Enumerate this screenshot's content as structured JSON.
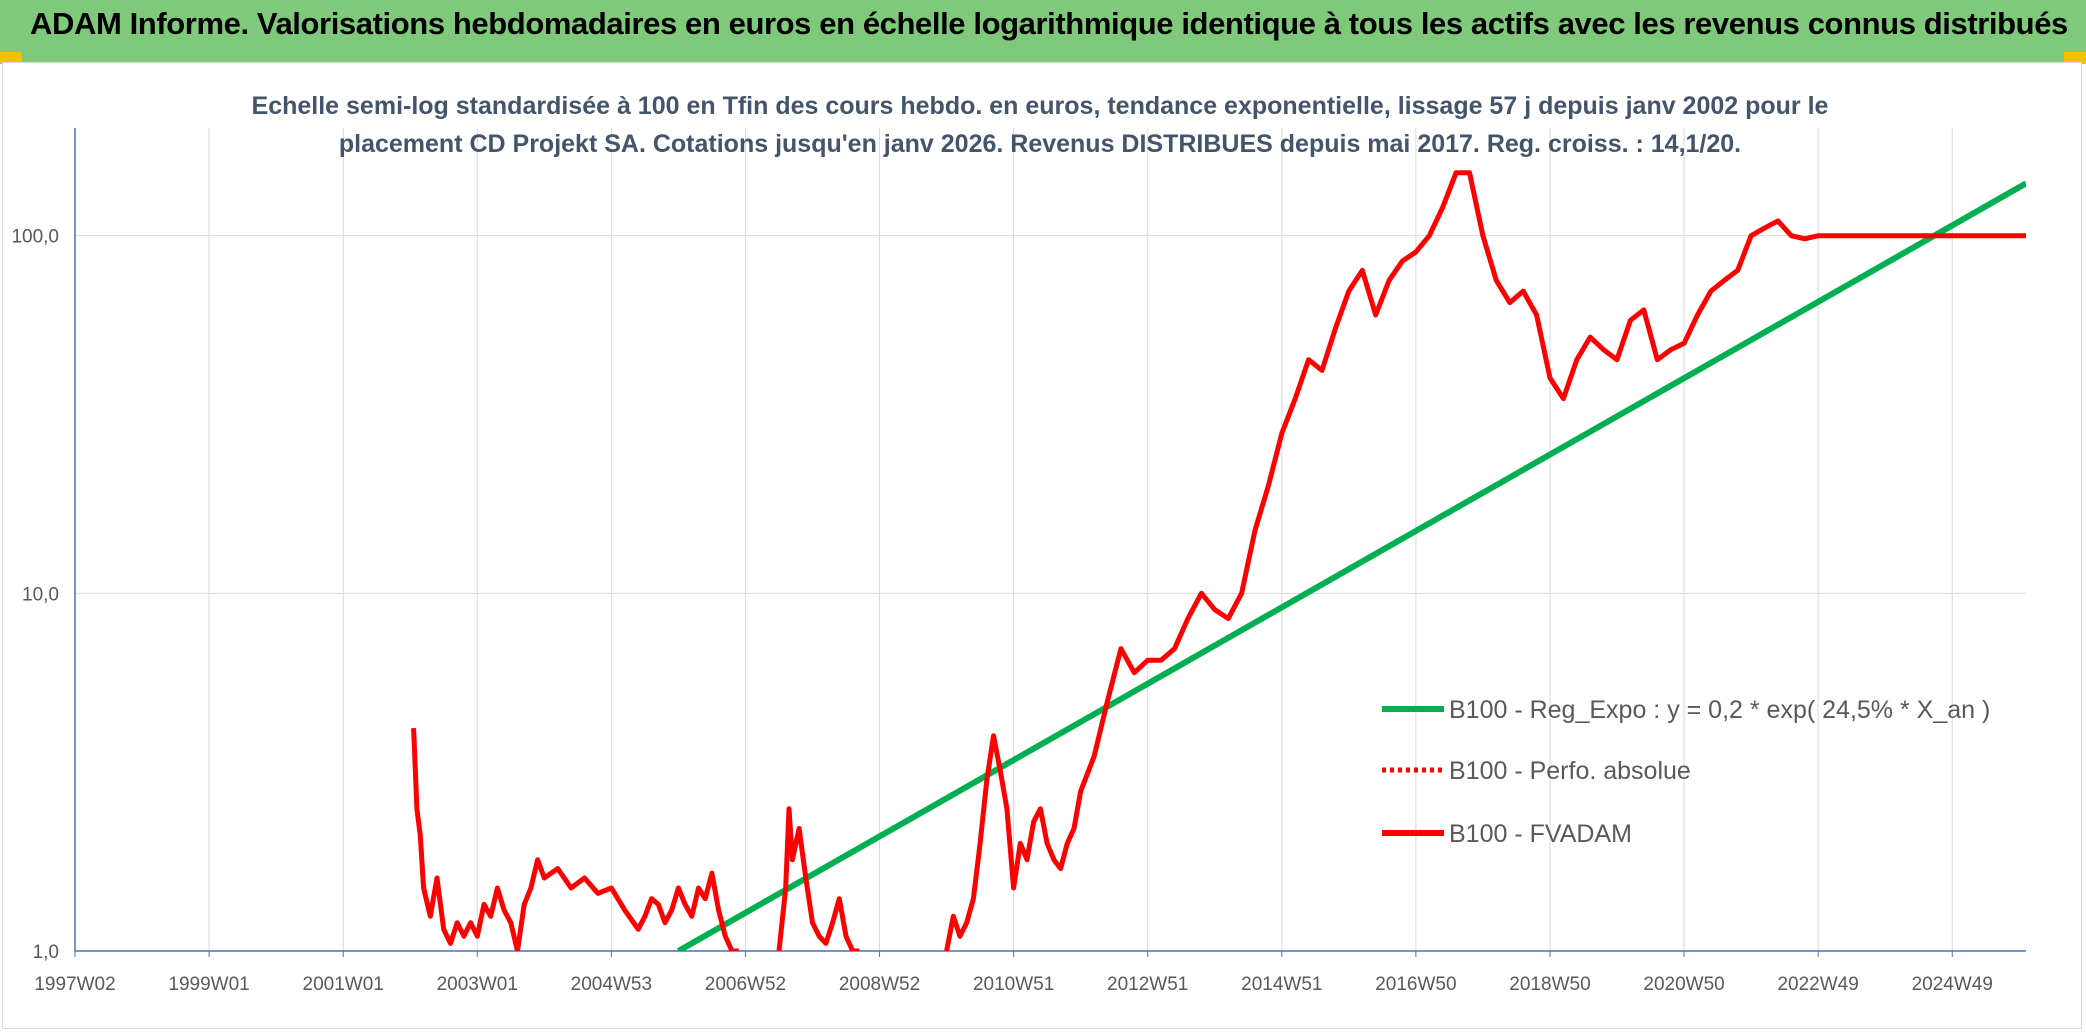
{
  "header": {
    "title": "ADAM Informe. Valorisations hebdomadaires en euros en échelle logarithmique identique à tous les actifs avec les revenus connus distribués"
  },
  "colors": {
    "banner": "#7fc97a",
    "regression": "#00b050",
    "fvadam": "#ff0000",
    "grid": "#d9d9d9",
    "axis": "#4472c4"
  },
  "chart_data": {
    "type": "line",
    "title_lines": [
      "Echelle semi-log standardisée à 100 en Tfin des cours hebdo. en euros, tendance exponentielle, lissage 57 j depuis janv 2002 pour le",
      "placement CD Projekt SA. Cotations jusqu'en janv 2026. Revenus DISTRIBUES depuis mai 2017. Reg. croiss. : 14,1/20."
    ],
    "y_scale": "log",
    "ylim": [
      1,
      200
    ],
    "xlim": [
      1997.0,
      2026.1
    ],
    "y_ticks": [
      {
        "value": 1,
        "label": "1,0"
      },
      {
        "value": 10,
        "label": "10,0"
      },
      {
        "value": 100,
        "label": "100,0"
      }
    ],
    "x_ticks": [
      {
        "value": 1997.0,
        "label": "1997W02"
      },
      {
        "value": 1999.0,
        "label": "1999W01"
      },
      {
        "value": 2001.0,
        "label": "2001W01"
      },
      {
        "value": 2003.0,
        "label": "2003W01"
      },
      {
        "value": 2005.0,
        "label": "2004W53"
      },
      {
        "value": 2007.0,
        "label": "2006W52"
      },
      {
        "value": 2009.0,
        "label": "2008W52"
      },
      {
        "value": 2011.0,
        "label": "2010W51"
      },
      {
        "value": 2013.0,
        "label": "2012W51"
      },
      {
        "value": 2015.0,
        "label": "2014W51"
      },
      {
        "value": 2017.0,
        "label": "2016W50"
      },
      {
        "value": 2019.0,
        "label": "2018W50"
      },
      {
        "value": 2021.0,
        "label": "2020W50"
      },
      {
        "value": 2023.0,
        "label": "2022W49"
      },
      {
        "value": 2025.0,
        "label": "2024W49"
      }
    ],
    "grid": true,
    "legend_position": "right",
    "series": [
      {
        "name": "B100 - Reg_Expo : y = 0,2 * exp( 24,5% *  X_an )",
        "style": "solid",
        "color": "#00b050",
        "x": [
          2006.0,
          2026.1
        ],
        "y": [
          1.0,
          140
        ]
      },
      {
        "name": "B100 - Perfo. absolue",
        "style": "dotted",
        "color": "#ff0000",
        "x": [],
        "y": []
      },
      {
        "name": "B100 - FVADAM",
        "style": "solid",
        "color": "#ff0000",
        "segments": [
          {
            "x": [
              2002.05,
              2002.1,
              2002.15,
              2002.2,
              2002.3,
              2002.4,
              2002.5,
              2002.6,
              2002.7,
              2002.8,
              2002.9,
              2003.0,
              2003.1,
              2003.2,
              2003.3,
              2003.4,
              2003.5,
              2003.6,
              2003.7,
              2003.8,
              2003.9,
              2004.0,
              2004.2,
              2004.4,
              2004.6,
              2004.8,
              2005.0,
              2005.2,
              2005.4,
              2005.5,
              2005.6,
              2005.7,
              2005.8,
              2005.9,
              2006.0,
              2006.1,
              2006.2,
              2006.3,
              2006.4,
              2006.5,
              2006.6,
              2006.7,
              2006.8,
              2006.9
            ],
            "y": [
              4.2,
              2.5,
              2.1,
              1.5,
              1.25,
              1.6,
              1.15,
              1.05,
              1.2,
              1.1,
              1.2,
              1.1,
              1.35,
              1.25,
              1.5,
              1.3,
              1.2,
              1.0,
              1.35,
              1.5,
              1.8,
              1.6,
              1.7,
              1.5,
              1.6,
              1.45,
              1.5,
              1.3,
              1.15,
              1.25,
              1.4,
              1.35,
              1.2,
              1.3,
              1.5,
              1.35,
              1.25,
              1.5,
              1.4,
              1.65,
              1.3,
              1.1,
              1.0,
              1.0
            ]
          },
          {
            "x": [
              2007.5,
              2007.6,
              2007.65,
              2007.7,
              2007.8,
              2007.9,
              2008.0,
              2008.1,
              2008.2,
              2008.3,
              2008.4,
              2008.5,
              2008.6,
              2008.7
            ],
            "y": [
              1.0,
              1.5,
              2.5,
              1.8,
              2.2,
              1.6,
              1.2,
              1.1,
              1.05,
              1.2,
              1.4,
              1.1,
              1.0,
              1.0
            ]
          },
          {
            "x": [
              2010.0,
              2010.1,
              2010.2,
              2010.3,
              2010.4,
              2010.5,
              2010.6,
              2010.7,
              2010.8,
              2010.9,
              2011.0,
              2011.1,
              2011.2,
              2011.3,
              2011.4,
              2011.5,
              2011.6,
              2011.7,
              2011.8,
              2011.9,
              2012.0,
              2012.2,
              2012.4,
              2012.6,
              2012.8,
              2013.0,
              2013.2,
              2013.4,
              2013.6,
              2013.8,
              2014.0,
              2014.2,
              2014.4,
              2014.6,
              2014.8,
              2015.0,
              2015.2,
              2015.4,
              2015.6,
              2015.8,
              2016.0,
              2016.2,
              2016.4,
              2016.6,
              2016.8,
              2017.0,
              2017.2,
              2017.4,
              2017.6,
              2017.8,
              2018.0,
              2018.2,
              2018.4,
              2018.6,
              2018.8,
              2019.0,
              2019.2,
              2019.4,
              2019.6,
              2019.8,
              2020.0,
              2020.2,
              2020.4,
              2020.6,
              2020.8,
              2021.0,
              2021.2,
              2021.4,
              2021.6,
              2021.8,
              2022.0,
              2022.2,
              2022.4,
              2022.6,
              2022.8,
              2023.0,
              2023.2,
              2023.4,
              2023.6,
              2023.8,
              2024.0,
              2024.2,
              2024.4,
              2024.6,
              2024.8,
              2025.0,
              2025.2,
              2025.4,
              2025.6,
              2025.8,
              2026.0,
              2026.1
            ],
            "y": [
              1.0,
              1.25,
              1.1,
              1.2,
              1.4,
              2.0,
              3.0,
              4.0,
              3.2,
              2.5,
              1.5,
              2.0,
              1.8,
              2.3,
              2.5,
              2.0,
              1.8,
              1.7,
              2.0,
              2.2,
              2.8,
              3.5,
              5.0,
              7.0,
              6.0,
              6.5,
              6.5,
              7.0,
              8.5,
              10.0,
              9.0,
              8.5,
              10.0,
              15.0,
              20.0,
              28.0,
              35.0,
              45.0,
              42.0,
              55.0,
              70.0,
              80.0,
              60.0,
              75.0,
              85.0,
              90.0,
              100.0,
              120.0,
              150.0,
              150.0,
              100.0,
              75.0,
              65.0,
              70.0,
              60.0,
              40.0,
              35.0,
              45.0,
              52.0,
              48.0,
              45.0,
              58.0,
              62.0,
              45.0,
              48.0,
              50.0,
              60.0,
              70.0,
              75.0,
              80.0,
              100.0,
              105.0,
              110.0,
              100.0,
              98.0,
              100.0,
              100.0,
              100.0,
              100.0,
              100.0,
              100.0,
              100.0,
              100.0,
              100.0,
              100.0,
              100.0,
              100.0,
              100.0,
              100.0,
              100.0,
              100.0,
              100.0
            ]
          }
        ]
      }
    ]
  }
}
